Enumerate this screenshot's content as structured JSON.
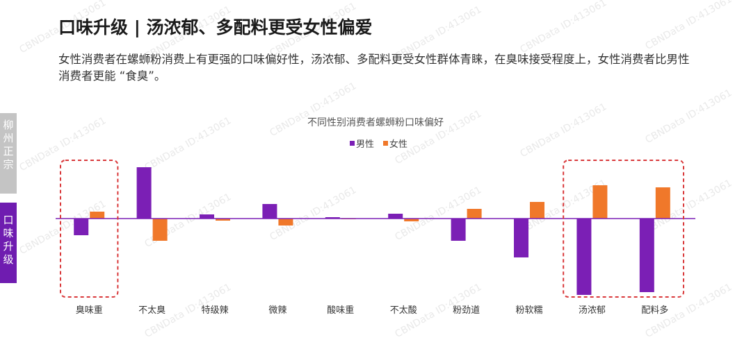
{
  "header": {
    "title": "口味升级 | 汤浓郁、多配料更受女性偏爱",
    "subtitle": "女性消费者在螺蛳粉消费上有更强的口味偏好性，汤浓郁、多配料更受女性群体青睐，在臭味接受程度上，女性消费者比男性消费者更能 “食臭”。"
  },
  "sidebar": {
    "tabs": [
      {
        "label": "柳州正宗",
        "chars": [
          "柳",
          "州",
          "正",
          "宗"
        ],
        "active": false
      },
      {
        "label": "口味升级",
        "chars": [
          "口",
          "味",
          "升",
          "级"
        ],
        "active": true
      }
    ]
  },
  "watermark": "CBNData ID:413061",
  "colors": {
    "male": "#7b1fb5",
    "female": "#f0782a",
    "axis": "#7b1fb5",
    "highlight_box": "#d9383a",
    "tab_active": "#6f1cb0",
    "tab_inactive": "#c4c4c4"
  },
  "chart_data": {
    "type": "bar",
    "title": "不同性别消费者螺蛳粉口味偏好",
    "categories": [
      "臭味重",
      "不太臭",
      "特级辣",
      "微辣",
      "酸味重",
      "不太酸",
      "粉劲道",
      "粉软糯",
      "汤浓郁",
      "配料多"
    ],
    "series": [
      {
        "name": "男性",
        "values": [
          -2.4,
          7.4,
          0.6,
          2.1,
          0.2,
          0.7,
          -3.2,
          -5.6,
          -11.0,
          -10.6
        ]
      },
      {
        "name": "女性",
        "values": [
          1.0,
          -3.2,
          -0.3,
          -1.0,
          -0.1,
          -0.4,
          1.4,
          2.4,
          4.8,
          4.5
        ]
      }
    ],
    "ylim": [
      -12,
      9
    ],
    "legend": "top-center",
    "highlight_groups": [
      [
        "臭味重"
      ],
      [
        "汤浓郁",
        "配料多"
      ]
    ]
  }
}
